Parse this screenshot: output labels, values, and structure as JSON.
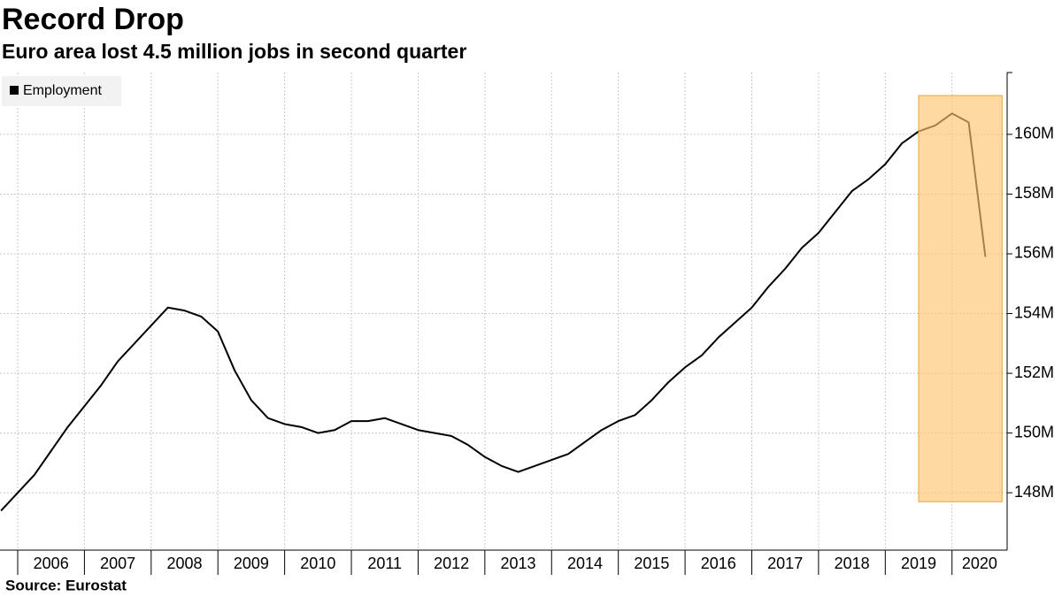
{
  "chart_data": {
    "type": "line",
    "title": "Record Drop",
    "subtitle": "Euro area lost 4.5 million jobs in second quarter",
    "source": "Source: Eurostat",
    "x": [
      2005.75,
      2006,
      2006.25,
      2006.5,
      2006.75,
      2007,
      2007.25,
      2007.5,
      2007.75,
      2008,
      2008.25,
      2008.5,
      2008.75,
      2009,
      2009.25,
      2009.5,
      2009.75,
      2010,
      2010.25,
      2010.5,
      2010.75,
      2011,
      2011.25,
      2011.5,
      2011.75,
      2012,
      2012.25,
      2012.5,
      2012.75,
      2013,
      2013.25,
      2013.5,
      2013.75,
      2014,
      2014.25,
      2014.5,
      2014.75,
      2015,
      2015.25,
      2015.5,
      2015.75,
      2016,
      2016.25,
      2016.5,
      2016.75,
      2017,
      2017.25,
      2017.5,
      2017.75,
      2018,
      2018.25,
      2018.5,
      2018.75,
      2019,
      2019.25,
      2019.5,
      2019.75,
      2020,
      2020.25,
      2020.5
    ],
    "series": [
      {
        "name": "Employment",
        "color": "#000000",
        "values": [
          147.4,
          148.0,
          148.6,
          149.4,
          150.2,
          150.9,
          151.6,
          152.4,
          153.0,
          153.6,
          154.2,
          154.1,
          153.9,
          153.4,
          152.1,
          151.1,
          150.5,
          150.3,
          150.2,
          150.0,
          150.1,
          150.4,
          150.4,
          150.5,
          150.3,
          150.1,
          150.0,
          149.9,
          149.6,
          149.2,
          148.9,
          148.7,
          148.9,
          149.1,
          149.3,
          149.7,
          150.1,
          150.4,
          150.6,
          151.1,
          151.7,
          152.2,
          152.6,
          153.2,
          153.7,
          154.2,
          154.9,
          155.5,
          156.2,
          156.7,
          157.4,
          158.1,
          158.5,
          159.0,
          159.7,
          160.1,
          160.3,
          160.7,
          160.4,
          155.9
        ]
      }
    ],
    "xlim": [
      2005.735,
      2020.826
    ],
    "xticks": [
      2006,
      2007,
      2008,
      2009,
      2010,
      2011,
      2012,
      2013,
      2014,
      2015,
      2016,
      2017,
      2018,
      2019,
      2020
    ],
    "ylim": [
      146.08,
      162.07
    ],
    "yticks": [
      {
        "value": 148,
        "label": "148M"
      },
      {
        "value": 150,
        "label": "150M"
      },
      {
        "value": 152,
        "label": "152M"
      },
      {
        "value": 154,
        "label": "154M"
      },
      {
        "value": 156,
        "label": "156M"
      },
      {
        "value": 158,
        "label": "158M"
      },
      {
        "value": 160,
        "label": "160M"
      }
    ],
    "grid": true,
    "legend": "top-left",
    "highlight": {
      "x": [
        2019.5,
        2020.75
      ],
      "y": [
        147.7,
        161.3
      ],
      "color": "#ffc56e"
    }
  }
}
